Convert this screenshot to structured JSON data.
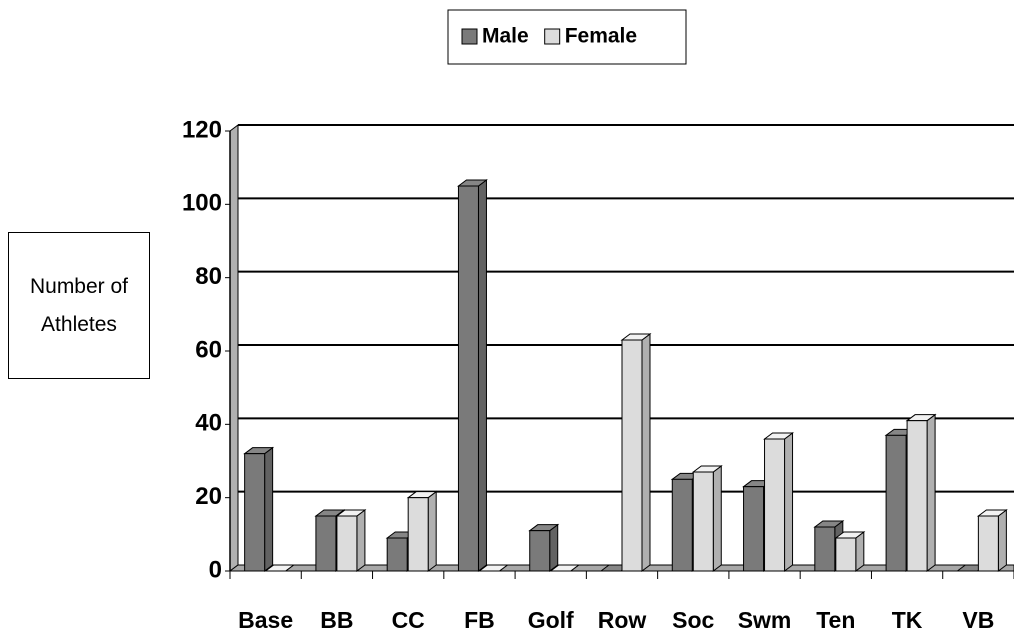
{
  "chart_data": {
    "type": "bar3d",
    "y_label": "Number of Athletes",
    "categories": [
      "Base",
      "BB",
      "CC",
      "FB",
      "Golf",
      "Row",
      "Soc",
      "Swm",
      "Ten",
      "TK",
      "VB"
    ],
    "series": [
      {
        "name": "Male",
        "color": "#7a7a7a",
        "values": [
          32,
          15,
          9,
          105,
          11,
          0,
          25,
          23,
          12,
          37,
          0
        ]
      },
      {
        "name": "Female",
        "color": "#dcdcdc",
        "values": [
          0,
          15,
          20,
          0,
          0,
          63,
          27,
          36,
          9,
          41,
          15
        ]
      }
    ],
    "ylim": [
      0,
      120
    ],
    "yticks": [
      0,
      20,
      40,
      60,
      80,
      100,
      120
    ],
    "grid": true,
    "legend": "top"
  }
}
